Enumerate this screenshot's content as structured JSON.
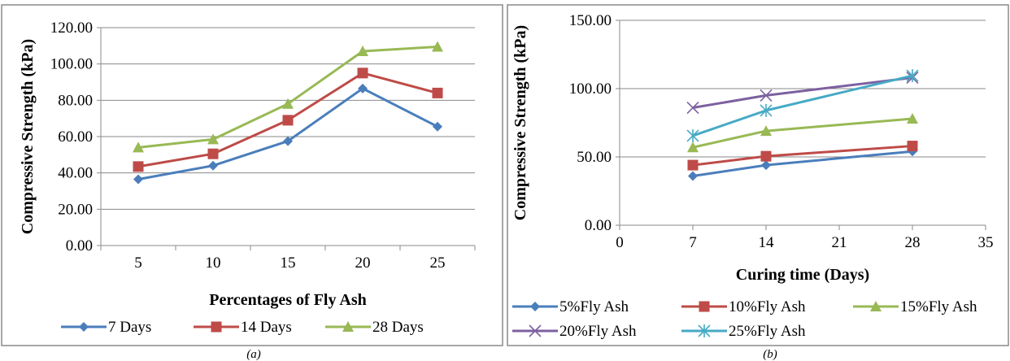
{
  "chart_data": [
    {
      "id": "a",
      "type": "line",
      "caption": "(a)",
      "xlabel": "Percentages of Fly Ash",
      "ylabel": "Compressive Strength (kPa)",
      "categories": [
        "5",
        "10",
        "15",
        "20",
        "25"
      ],
      "yticks": [
        "0.00",
        "20.00",
        "40.00",
        "60.00",
        "80.00",
        "100.00",
        "120.00"
      ],
      "ylim": [
        0,
        120
      ],
      "grid": true,
      "legend_position": "bottom",
      "series": [
        {
          "name": "7 Days",
          "values": [
            36.5,
            44,
            57.5,
            86.5,
            65.5
          ],
          "color": "#4a7ebb",
          "marker": "diamond"
        },
        {
          "name": "14 Days",
          "values": [
            43.5,
            50.5,
            69,
            95,
            84
          ],
          "color": "#be4b48",
          "marker": "square"
        },
        {
          "name": "28 Days",
          "values": [
            54,
            58.5,
            78,
            107,
            109.5
          ],
          "color": "#98b954",
          "marker": "triangle"
        }
      ]
    },
    {
      "id": "b",
      "type": "line",
      "caption": "(b)",
      "xlabel": "Curing time (Days)",
      "ylabel": "Compressive Strength (kPa)",
      "xticks": [
        "0",
        "7",
        "14",
        "21",
        "28",
        "35"
      ],
      "xlim": [
        0,
        35
      ],
      "yticks": [
        "0.00",
        "50.00",
        "100.00",
        "150.00"
      ],
      "ylim": [
        0,
        150
      ],
      "grid": true,
      "legend_position": "bottom",
      "x": [
        7,
        14,
        28
      ],
      "series": [
        {
          "name": "5%Fly Ash",
          "values": [
            36,
            44,
            54
          ],
          "color": "#4a7ebb",
          "marker": "diamond"
        },
        {
          "name": "10%Fly Ash",
          "values": [
            44,
            50.5,
            58
          ],
          "color": "#be4b48",
          "marker": "square"
        },
        {
          "name": "15%Fly Ash",
          "values": [
            57,
            69,
            78
          ],
          "color": "#98b954",
          "marker": "triangle"
        },
        {
          "name": "20%Fly Ash",
          "values": [
            86,
            95,
            108
          ],
          "color": "#7d60a0",
          "marker": "x"
        },
        {
          "name": "25%Fly Ash",
          "values": [
            65.5,
            84,
            109.5
          ],
          "color": "#46aac5",
          "marker": "star"
        }
      ]
    }
  ]
}
